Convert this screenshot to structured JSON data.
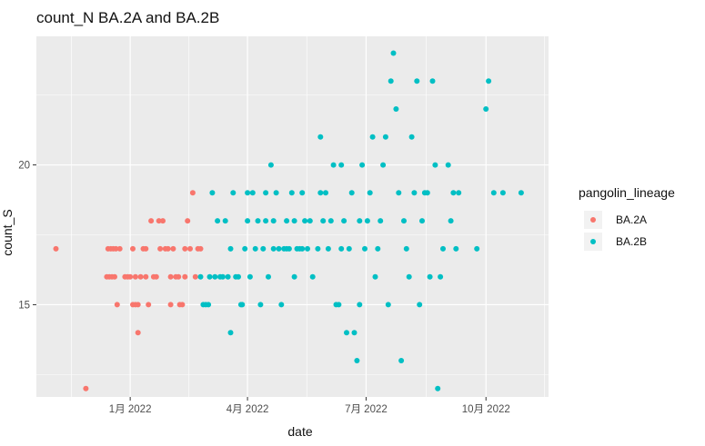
{
  "chart_data": {
    "type": "scatter",
    "title": "count_N BA.2A and BA.2B",
    "xlabel": "date",
    "ylabel": "count_S",
    "x_type": "date",
    "xlim": [
      "2021-10-21",
      "2022-11-18"
    ],
    "ylim": [
      11.7,
      24.6
    ],
    "x_ticks": [
      {
        "value": "2022-01-01",
        "label": "1月 2022"
      },
      {
        "value": "2022-04-01",
        "label": "4月 2022"
      },
      {
        "value": "2022-07-01",
        "label": "7月 2022"
      },
      {
        "value": "2022-10-01",
        "label": "10月 2022"
      }
    ],
    "y_ticks": [
      {
        "value": 15,
        "label": "15"
      },
      {
        "value": 20,
        "label": "20"
      }
    ],
    "grid": true,
    "legend": {
      "title": "pangolin_lineage",
      "position": "right"
    },
    "colors": {
      "BA.2A": "#F8766D",
      "BA.2B": "#00BFC4",
      "panel": "#EBEBEB",
      "grid": "#FFFFFF"
    },
    "series": [
      {
        "name": "BA.2A",
        "points": [
          [
            "2021-11-05",
            17
          ],
          [
            "2021-11-28",
            12
          ],
          [
            "2021-12-15",
            17
          ],
          [
            "2021-12-17",
            17
          ],
          [
            "2021-12-19",
            17
          ],
          [
            "2021-12-21",
            17
          ],
          [
            "2021-12-14",
            16
          ],
          [
            "2021-12-16",
            16
          ],
          [
            "2021-12-18",
            16
          ],
          [
            "2021-12-20",
            16
          ],
          [
            "2021-12-22",
            15
          ],
          [
            "2021-12-24",
            17
          ],
          [
            "2021-12-28",
            16
          ],
          [
            "2021-12-30",
            16
          ],
          [
            "2022-01-01",
            16
          ],
          [
            "2022-01-03",
            17
          ],
          [
            "2022-01-03",
            15
          ],
          [
            "2022-01-05",
            15
          ],
          [
            "2022-01-05",
            16
          ],
          [
            "2022-01-07",
            15
          ],
          [
            "2022-01-07",
            14
          ],
          [
            "2022-01-09",
            16
          ],
          [
            "2022-01-11",
            17
          ],
          [
            "2022-01-13",
            17
          ],
          [
            "2022-01-13",
            16
          ],
          [
            "2022-01-15",
            15
          ],
          [
            "2022-01-17",
            18
          ],
          [
            "2022-01-19",
            16
          ],
          [
            "2022-01-21",
            16
          ],
          [
            "2022-01-23",
            18
          ],
          [
            "2022-01-24",
            17
          ],
          [
            "2022-01-26",
            18
          ],
          [
            "2022-01-28",
            17
          ],
          [
            "2022-01-30",
            17
          ],
          [
            "2022-02-01",
            15
          ],
          [
            "2022-02-01",
            16
          ],
          [
            "2022-02-03",
            17
          ],
          [
            "2022-02-05",
            16
          ],
          [
            "2022-02-07",
            16
          ],
          [
            "2022-02-08",
            15
          ],
          [
            "2022-02-10",
            15
          ],
          [
            "2022-02-12",
            16
          ],
          [
            "2022-02-12",
            17
          ],
          [
            "2022-02-14",
            18
          ],
          [
            "2022-02-16",
            17
          ],
          [
            "2022-02-18",
            19
          ],
          [
            "2022-02-20",
            16
          ],
          [
            "2022-02-22",
            17
          ],
          [
            "2022-02-24",
            17
          ]
        ]
      },
      {
        "name": "BA.2B",
        "points": [
          [
            "2022-02-24",
            16
          ],
          [
            "2022-02-26",
            15
          ],
          [
            "2022-02-28",
            15
          ],
          [
            "2022-03-02",
            15
          ],
          [
            "2022-03-03",
            16
          ],
          [
            "2022-03-05",
            19
          ],
          [
            "2022-03-07",
            16
          ],
          [
            "2022-03-09",
            18
          ],
          [
            "2022-03-11",
            16
          ],
          [
            "2022-03-13",
            16
          ],
          [
            "2022-03-15",
            18
          ],
          [
            "2022-03-17",
            16
          ],
          [
            "2022-03-19",
            14
          ],
          [
            "2022-03-19",
            17
          ],
          [
            "2022-03-21",
            19
          ],
          [
            "2022-03-23",
            16
          ],
          [
            "2022-03-25",
            16
          ],
          [
            "2022-03-27",
            15
          ],
          [
            "2022-03-28",
            15
          ],
          [
            "2022-03-30",
            17
          ],
          [
            "2022-04-01",
            19
          ],
          [
            "2022-04-01",
            18
          ],
          [
            "2022-04-03",
            16
          ],
          [
            "2022-04-05",
            19
          ],
          [
            "2022-04-07",
            17
          ],
          [
            "2022-04-09",
            18
          ],
          [
            "2022-04-11",
            15
          ],
          [
            "2022-04-13",
            17
          ],
          [
            "2022-04-15",
            18
          ],
          [
            "2022-04-15",
            19
          ],
          [
            "2022-04-17",
            16
          ],
          [
            "2022-04-19",
            20
          ],
          [
            "2022-04-21",
            17
          ],
          [
            "2022-04-21",
            18
          ],
          [
            "2022-04-23",
            19
          ],
          [
            "2022-04-25",
            17
          ],
          [
            "2022-04-27",
            15
          ],
          [
            "2022-04-29",
            17
          ],
          [
            "2022-05-01",
            17
          ],
          [
            "2022-05-01",
            18
          ],
          [
            "2022-05-03",
            17
          ],
          [
            "2022-05-05",
            19
          ],
          [
            "2022-05-07",
            18
          ],
          [
            "2022-05-07",
            16
          ],
          [
            "2022-05-09",
            17
          ],
          [
            "2022-05-11",
            17
          ],
          [
            "2022-05-13",
            17
          ],
          [
            "2022-05-13",
            19
          ],
          [
            "2022-05-15",
            18
          ],
          [
            "2022-05-17",
            17
          ],
          [
            "2022-05-19",
            18
          ],
          [
            "2022-05-21",
            16
          ],
          [
            "2022-05-25",
            17
          ],
          [
            "2022-05-27",
            21
          ],
          [
            "2022-05-27",
            19
          ],
          [
            "2022-05-29",
            18
          ],
          [
            "2022-05-31",
            19
          ],
          [
            "2022-06-02",
            17
          ],
          [
            "2022-06-04",
            18
          ],
          [
            "2022-06-06",
            20
          ],
          [
            "2022-06-08",
            15
          ],
          [
            "2022-06-10",
            15
          ],
          [
            "2022-06-12",
            20
          ],
          [
            "2022-06-12",
            17
          ],
          [
            "2022-06-14",
            18
          ],
          [
            "2022-06-16",
            14
          ],
          [
            "2022-06-18",
            17
          ],
          [
            "2022-06-20",
            19
          ],
          [
            "2022-06-22",
            14
          ],
          [
            "2022-06-24",
            13
          ],
          [
            "2022-06-26",
            18
          ],
          [
            "2022-06-26",
            15
          ],
          [
            "2022-06-28",
            20
          ],
          [
            "2022-06-30",
            17
          ],
          [
            "2022-07-02",
            18
          ],
          [
            "2022-07-04",
            19
          ],
          [
            "2022-07-06",
            21
          ],
          [
            "2022-07-08",
            16
          ],
          [
            "2022-07-10",
            17
          ],
          [
            "2022-07-12",
            18
          ],
          [
            "2022-07-14",
            20
          ],
          [
            "2022-07-16",
            21
          ],
          [
            "2022-07-18",
            15
          ],
          [
            "2022-07-20",
            23
          ],
          [
            "2022-07-22",
            24
          ],
          [
            "2022-07-24",
            22
          ],
          [
            "2022-07-26",
            19
          ],
          [
            "2022-07-28",
            13
          ],
          [
            "2022-07-30",
            18
          ],
          [
            "2022-08-01",
            17
          ],
          [
            "2022-08-03",
            16
          ],
          [
            "2022-08-05",
            21
          ],
          [
            "2022-08-07",
            19
          ],
          [
            "2022-08-09",
            23
          ],
          [
            "2022-08-11",
            15
          ],
          [
            "2022-08-13",
            18
          ],
          [
            "2022-08-15",
            19
          ],
          [
            "2022-08-17",
            19
          ],
          [
            "2022-08-19",
            16
          ],
          [
            "2022-08-21",
            23
          ],
          [
            "2022-08-23",
            20
          ],
          [
            "2022-08-25",
            12
          ],
          [
            "2022-08-27",
            16
          ],
          [
            "2022-08-29",
            17
          ],
          [
            "2022-09-02",
            20
          ],
          [
            "2022-09-04",
            18
          ],
          [
            "2022-09-06",
            19
          ],
          [
            "2022-09-08",
            17
          ],
          [
            "2022-09-10",
            19
          ],
          [
            "2022-09-24",
            17
          ],
          [
            "2022-10-01",
            22
          ],
          [
            "2022-10-03",
            23
          ],
          [
            "2022-10-07",
            19
          ],
          [
            "2022-10-14",
            19
          ],
          [
            "2022-10-28",
            19
          ]
        ]
      }
    ]
  }
}
